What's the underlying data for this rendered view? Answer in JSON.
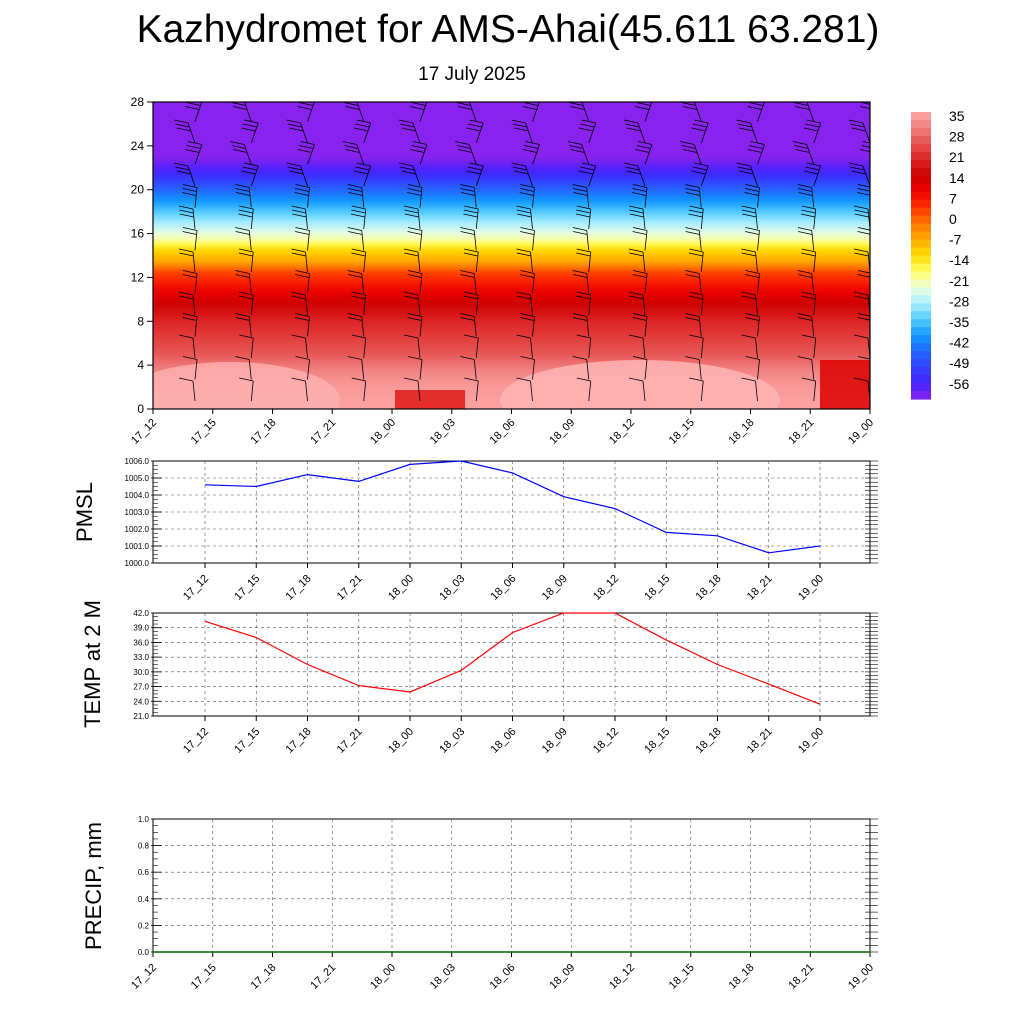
{
  "title": "Kazhydromet for AMS-Ahai(45.611 63.281)",
  "subtitle": "17 July 2025",
  "colors": {
    "pmsl_line": "#0000ff",
    "temp_line": "#ff0000",
    "precip_line": "#006400",
    "grid": "#555555"
  },
  "chart_data": [
    {
      "type": "heatmap",
      "title": "",
      "x_ticks": [
        "17_12",
        "17_15",
        "17_18",
        "17_21",
        "18_00",
        "18_03",
        "18_06",
        "18_09",
        "18_12",
        "18_15",
        "18_18",
        "18_21",
        "19_00"
      ],
      "y_ticks": [
        0,
        4,
        8,
        12,
        16,
        20,
        24,
        28
      ],
      "ylim": [
        0,
        28
      ],
      "colorbar_labels": [
        "35",
        "28",
        "21",
        "14",
        "7",
        "0",
        "-7",
        "-14",
        "-21",
        "-28",
        "-35",
        "-42",
        "-49",
        "-56"
      ],
      "colormap": [
        "#8822ee",
        "#4422ff",
        "#2266ff",
        "#1199ff",
        "#22bbff",
        "#66ddff",
        "#aaeeff",
        "#eeffcc",
        "#ffff55",
        "#ffdd00",
        "#ffaa00",
        "#ff7700",
        "#ff3300",
        "#ee0000",
        "#cc0000",
        "#cc3333",
        "#ee7777",
        "#ffaaaa"
      ],
      "description_layers": "temperature by level with wind barbs",
      "grid": false
    },
    {
      "type": "line",
      "ylabel": "PMSL",
      "x": [
        "17_12",
        "17_15",
        "17_18",
        "17_21",
        "18_00",
        "18_03",
        "18_06",
        "18_09",
        "18_12",
        "18_15",
        "18_18",
        "18_21",
        "19_00"
      ],
      "y_ticks": [
        "1000.0",
        "1001.0",
        "1002.0",
        "1003.0",
        "1004.0",
        "1005.0",
        "1006.0"
      ],
      "ylim": [
        1000,
        1006
      ],
      "series": [
        {
          "values": [
            1004.6,
            1004.5,
            1005.2,
            1004.8,
            1005.8,
            1006.0,
            1005.3,
            1003.9,
            1003.2,
            1001.8,
            1001.6,
            1000.6,
            1001.0
          ]
        }
      ],
      "grid": true
    },
    {
      "type": "line",
      "ylabel": "TEMP at 2 M",
      "x": [
        "17_12",
        "17_15",
        "17_18",
        "17_21",
        "18_00",
        "18_03",
        "18_06",
        "18_09",
        "18_12",
        "18_15",
        "18_18",
        "18_21",
        "19_00"
      ],
      "y_ticks": [
        "21.0",
        "24.0",
        "27.0",
        "30.0",
        "33.0",
        "36.0",
        "39.0",
        "42.0"
      ],
      "ylim": [
        21,
        42
      ],
      "series": [
        {
          "values": [
            40.3,
            37.0,
            31.5,
            27.2,
            25.9,
            30.3,
            38.0,
            42.0,
            42.0,
            36.5,
            31.5,
            27.5,
            23.4
          ]
        }
      ],
      "grid": true
    },
    {
      "type": "line",
      "ylabel": "PRECIP, mm",
      "x": [
        "17_12",
        "17_15",
        "17_18",
        "17_21",
        "18_00",
        "18_03",
        "18_06",
        "18_09",
        "18_12",
        "18_15",
        "18_18",
        "18_21",
        "19_00"
      ],
      "y_ticks": [
        "0.0",
        "0.2",
        "0.4",
        "0.6",
        "0.8",
        "1.0"
      ],
      "ylim": [
        0,
        1
      ],
      "series": [
        {
          "values": [
            0,
            0,
            0,
            0,
            0,
            0,
            0,
            0,
            0,
            0,
            0,
            0,
            0
          ]
        }
      ],
      "grid": true
    }
  ]
}
